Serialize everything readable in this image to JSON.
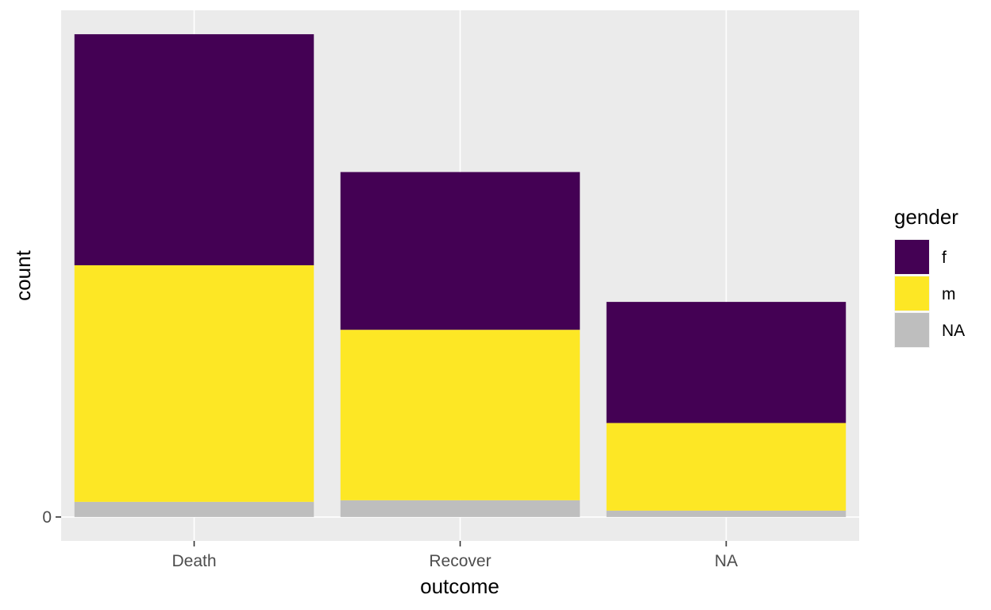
{
  "chart_data": {
    "type": "bar",
    "stacked": true,
    "xlabel": "outcome",
    "ylabel": "count",
    "categories": [
      "Death",
      "Recover",
      "NA"
    ],
    "series": [
      {
        "name": "f",
        "color": "#440154",
        "values": [
          290,
          198,
          152
        ]
      },
      {
        "name": "m",
        "color": "#FDE725",
        "values": [
          297,
          214,
          110
        ]
      },
      {
        "name": "NA",
        "color": "#BEBEBE",
        "values": [
          19,
          21,
          8
        ]
      }
    ],
    "y_ticks": [
      0
    ],
    "ylim": [
      -30,
      636
    ],
    "legend": {
      "title": "gender",
      "position": "right"
    },
    "grid": true
  }
}
